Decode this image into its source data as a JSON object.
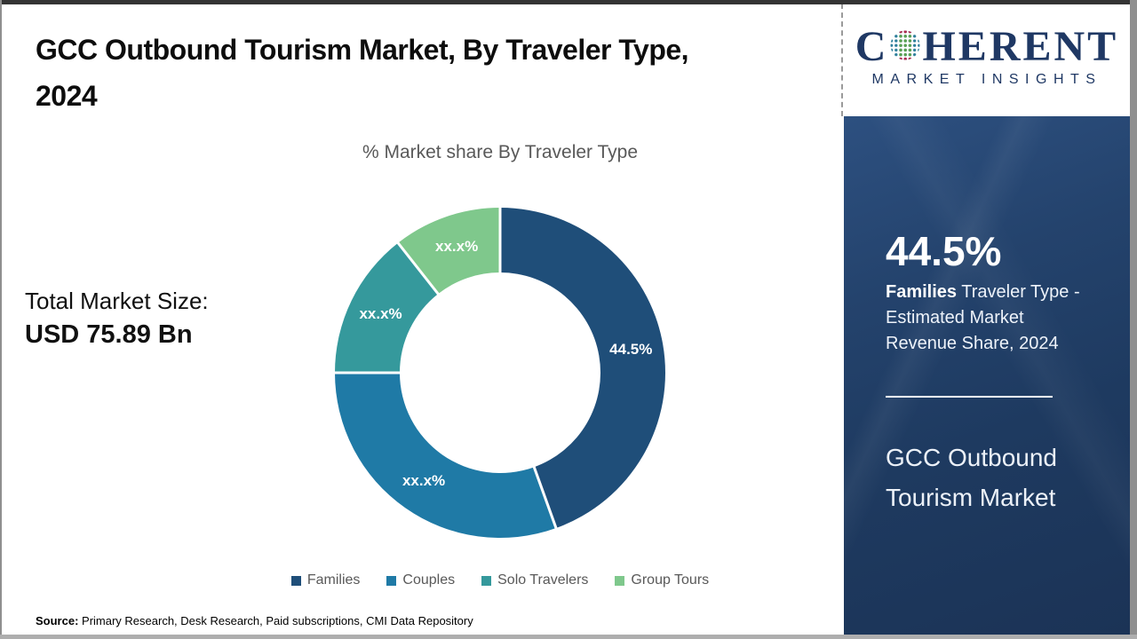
{
  "header": {
    "title": "GCC Outbound Tourism Market, By Traveler Type, 2024"
  },
  "logo": {
    "word_start": "C",
    "word_end": "HERENT",
    "subtitle": "MARKET INSIGHTS",
    "text_color": "#1F3864",
    "globe_icon_colors": {
      "dots_outer": "#2e7f9b",
      "dots_center": "#5aa14e",
      "dots_accent": "#b02a50"
    }
  },
  "main": {
    "chart_title": "% Market share By Traveler Type",
    "total_label": "Total Market Size:",
    "total_value": "USD 75.89 Bn",
    "source_label": "Source:",
    "source_text": " Primary Research, Desk Research, Paid subscriptions, CMI Data Repository"
  },
  "chart_data": {
    "type": "pie",
    "donut": true,
    "title": "% Market share By Traveler Type",
    "categories": [
      "Families",
      "Couples",
      "Solo Travelers",
      "Group Tours"
    ],
    "values": [
      44.5,
      30.5,
      14.4,
      10.6
    ],
    "slice_labels": [
      "44.5%",
      "xx.x%",
      "xx.x%",
      "xx.x%"
    ],
    "colors": [
      "#1F4E79",
      "#1F7AA6",
      "#35999C",
      "#7FC88C"
    ],
    "start_angle_deg": 0,
    "direction": "clockwise",
    "inner_radius_ratio": 0.61,
    "legend_position": "bottom",
    "slice_label_color": "#ffffff"
  },
  "sidebar": {
    "stat_value": "44.5%",
    "stat_bold": "Families",
    "stat_rest": " Traveler Type - Estimated Market Revenue Share, 2024",
    "panel_title": "GCC Outbound Tourism Market",
    "bg_color": "#1F3A60"
  }
}
